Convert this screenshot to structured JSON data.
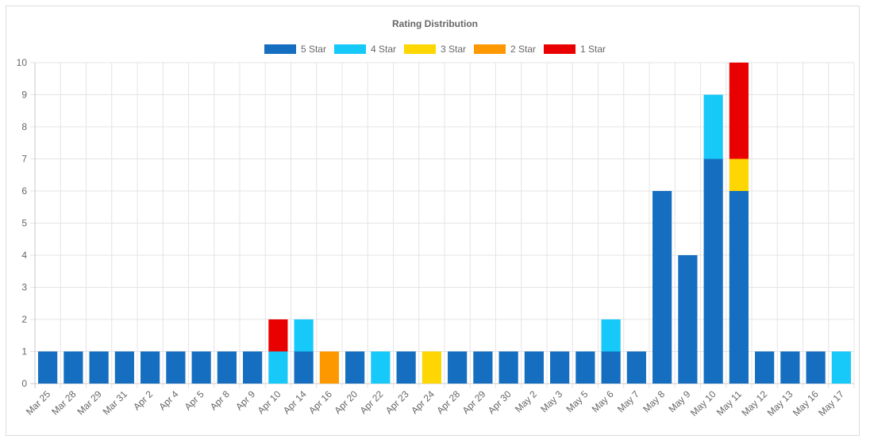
{
  "chart_data": {
    "type": "bar",
    "stacked": true,
    "title": "Rating Distribution",
    "legend_position": "top",
    "grid": true,
    "ylim": [
      0,
      10
    ],
    "y_ticks": [
      0,
      1,
      2,
      3,
      4,
      5,
      6,
      7,
      8,
      9,
      10
    ],
    "categories": [
      "Mar 25",
      "Mar 28",
      "Mar 29",
      "Mar 31",
      "Apr 2",
      "Apr 4",
      "Apr 5",
      "Apr 8",
      "Apr 9",
      "Apr 10",
      "Apr 14",
      "Apr 16",
      "Apr 20",
      "Apr 22",
      "Apr 23",
      "Apr 24",
      "Apr 28",
      "Apr 29",
      "Apr 30",
      "May 2",
      "May 3",
      "May 5",
      "May 6",
      "May 7",
      "May 8",
      "May 9",
      "May 10",
      "May 11",
      "May 12",
      "May 13",
      "May 16",
      "May 17"
    ],
    "series": [
      {
        "name": "5 Star",
        "color": "#156ec0",
        "values": [
          1,
          1,
          1,
          1,
          1,
          1,
          1,
          1,
          1,
          0,
          1,
          0,
          1,
          0,
          1,
          0,
          1,
          1,
          1,
          1,
          1,
          1,
          1,
          1,
          6,
          4,
          7,
          6,
          1,
          1,
          1,
          0
        ]
      },
      {
        "name": "4 Star",
        "color": "#16c9f9",
        "values": [
          0,
          0,
          0,
          0,
          0,
          0,
          0,
          0,
          0,
          1,
          1,
          0,
          0,
          1,
          0,
          0,
          0,
          0,
          0,
          0,
          0,
          0,
          1,
          0,
          0,
          0,
          2,
          0,
          0,
          0,
          0,
          1
        ]
      },
      {
        "name": "3 Star",
        "color": "#fed601",
        "values": [
          0,
          0,
          0,
          0,
          0,
          0,
          0,
          0,
          0,
          0,
          0,
          0,
          0,
          0,
          0,
          1,
          0,
          0,
          0,
          0,
          0,
          0,
          0,
          0,
          0,
          0,
          0,
          1,
          0,
          0,
          0,
          0
        ]
      },
      {
        "name": "2 Star",
        "color": "#fe9801",
        "values": [
          0,
          0,
          0,
          0,
          0,
          0,
          0,
          0,
          0,
          0,
          0,
          1,
          0,
          0,
          0,
          0,
          0,
          0,
          0,
          0,
          0,
          0,
          0,
          0,
          0,
          0,
          0,
          0,
          0,
          0,
          0,
          0
        ]
      },
      {
        "name": "1 Star",
        "color": "#e90101",
        "values": [
          0,
          0,
          0,
          0,
          0,
          0,
          0,
          0,
          0,
          1,
          0,
          0,
          0,
          0,
          0,
          0,
          0,
          0,
          0,
          0,
          0,
          0,
          0,
          0,
          0,
          0,
          0,
          3,
          0,
          0,
          0,
          0
        ]
      }
    ]
  }
}
